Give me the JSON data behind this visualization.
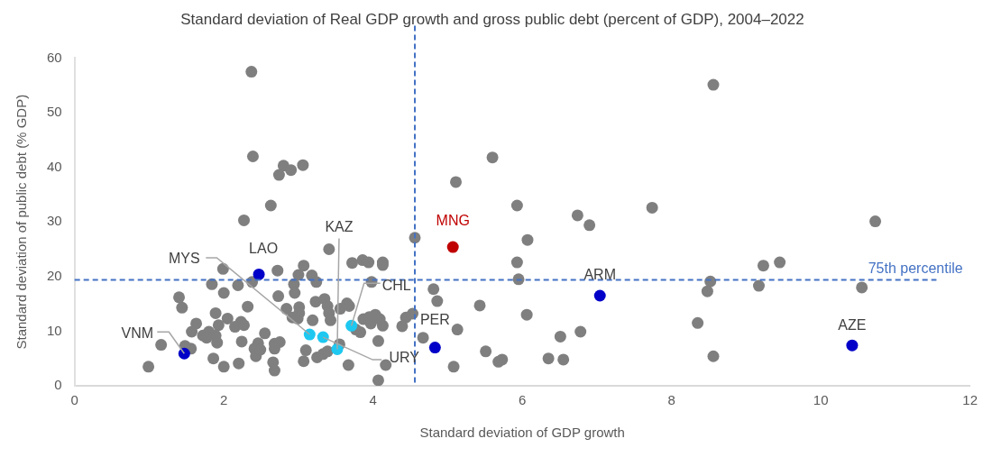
{
  "chart_data": {
    "type": "scatter",
    "title": "Standard deviation of Real GDP growth and gross public debt (percent of GDP), 2004–2022",
    "xlabel": "Standard deviation of GDP growth",
    "ylabel": "Standard deviation of public debt (% GDP)",
    "xlim": [
      0,
      12
    ],
    "xticks": [
      0,
      2,
      4,
      6,
      8,
      10,
      12
    ],
    "ylim": [
      0,
      60
    ],
    "yticks": [
      0,
      10,
      20,
      30,
      40,
      50,
      60
    ],
    "grid": false,
    "legend": false,
    "marker": "circle",
    "ref_lines": [
      {
        "axis": "x",
        "value": 4.56,
        "label": null,
        "color": "#4472c4",
        "line_style": "dashed"
      },
      {
        "axis": "y",
        "value": 19.4,
        "label": "75th percentile",
        "color": "#4472c4",
        "line_style": "dashed"
      }
    ],
    "series": [
      {
        "color": "#7f7f7f",
        "x": [
          8.56,
          5.6,
          5.11,
          5.93,
          7.74,
          6.74,
          6.9,
          10.73,
          4.56,
          6.07,
          5.93,
          9.23,
          9.45,
          5.95,
          8.52,
          8.48,
          9.17,
          10.55,
          4.81,
          4.86,
          5.43,
          6.06,
          8.35,
          4.53,
          4.44,
          4.39,
          5.13,
          4.67,
          6.51,
          6.78,
          5.51,
          5.68,
          5.73,
          6.35,
          6.55,
          5.08,
          8.56,
          2.37,
          2.39,
          2.8,
          2.9,
          3.06,
          2.74,
          2.63,
          2.27,
          3.41,
          3.07,
          2.72,
          1.99,
          3.72,
          3.86,
          3.94,
          4.13,
          4.13,
          3.0,
          3.18,
          3.24,
          2.94,
          2.95,
          3.98,
          1.84,
          2.19,
          2.0,
          2.38,
          1.4,
          1.44,
          2.32,
          2.73,
          3.23,
          3.35,
          3.39,
          2.84,
          3.01,
          3.01,
          2.92,
          2.99,
          3.41,
          3.43,
          3.19,
          3.56,
          3.65,
          3.68,
          3.55,
          1.89,
          2.05,
          2.23,
          2.15,
          2.27,
          1.63,
          1.57,
          1.93,
          1.72,
          1.8,
          1.89,
          1.91,
          1.77,
          1.16,
          1.56,
          1.48,
          2.55,
          2.24,
          2.46,
          2.41,
          2.43,
          2.49,
          2.68,
          2.75,
          2.68,
          2.66,
          2.68,
          2.2,
          1.86,
          2.0,
          0.99,
          3.07,
          3.1,
          3.25,
          3.33,
          3.39,
          3.67,
          4.17,
          4.07,
          4.07,
          3.87,
          3.95,
          4.03,
          3.97,
          4.13,
          4.09,
          3.83,
          3.77
        ],
        "values": [
          55.1,
          41.8,
          37.3,
          33.0,
          32.6,
          31.2,
          29.4,
          30.1,
          27.1,
          26.7,
          22.6,
          22.0,
          22.6,
          19.5,
          19.1,
          17.3,
          18.3,
          18.0,
          17.7,
          15.5,
          14.7,
          13.0,
          11.5,
          13.2,
          12.5,
          10.9,
          10.3,
          8.8,
          9.0,
          9.9,
          6.3,
          4.4,
          4.8,
          5.0,
          4.8,
          3.5,
          5.4,
          57.5,
          42.0,
          40.3,
          39.5,
          40.4,
          38.6,
          33.0,
          30.3,
          25.0,
          22.0,
          21.1,
          21.4,
          22.5,
          23.0,
          22.6,
          22.6,
          22.1,
          20.3,
          20.2,
          19.0,
          18.6,
          17.0,
          19.0,
          18.6,
          18.4,
          17.0,
          19.0,
          16.2,
          14.3,
          14.5,
          16.4,
          15.4,
          15.9,
          14.6,
          14.1,
          14.4,
          13.3,
          12.5,
          12.3,
          13.3,
          12.0,
          12.0,
          14.1,
          15.1,
          14.6,
          7.6,
          13.3,
          12.3,
          11.7,
          10.8,
          11.1,
          11.4,
          9.9,
          11.1,
          9.2,
          9.9,
          9.2,
          7.9,
          8.8,
          7.5,
          6.8,
          7.3,
          9.6,
          8.1,
          7.8,
          6.8,
          5.4,
          6.6,
          7.7,
          8.0,
          6.8,
          4.3,
          2.8,
          4.1,
          5.0,
          3.5,
          3.5,
          4.5,
          6.5,
          5.2,
          5.8,
          6.3,
          3.8,
          3.8,
          1.0,
          8.2,
          12.2,
          12.6,
          13.0,
          11.4,
          11.0,
          12.2,
          9.8,
          10.3
        ]
      },
      {
        "name": "LAO",
        "color": "#0000c8",
        "x": [
          2.47
        ],
        "values": [
          20.4
        ]
      },
      {
        "name": "VNM",
        "color": "#0000c8",
        "x": [
          1.47
        ],
        "values": [
          5.9
        ]
      },
      {
        "name": "MYS",
        "color": "#1ec8f0",
        "x": [
          3.15
        ],
        "values": [
          9.4
        ]
      },
      {
        "name": "URY",
        "color": "#1ec8f0",
        "x": [
          3.33
        ],
        "values": [
          8.9
        ]
      },
      {
        "name": "KAZ",
        "color": "#1ec8f0",
        "x": [
          3.52
        ],
        "values": [
          6.7
        ]
      },
      {
        "name": "CHL",
        "color": "#1ec8f0",
        "x": [
          3.71
        ],
        "values": [
          11.0
        ]
      },
      {
        "name": "PER",
        "color": "#0000c8",
        "x": [
          4.83
        ],
        "values": [
          7.0
        ]
      },
      {
        "name": "MNG",
        "color": "#c00000",
        "x": [
          5.07
        ],
        "values": [
          25.4
        ]
      },
      {
        "name": "ARM",
        "color": "#0000c8",
        "x": [
          7.04
        ],
        "values": [
          16.5
        ]
      },
      {
        "name": "AZE",
        "color": "#0000c8",
        "x": [
          10.42
        ],
        "values": [
          7.4
        ]
      }
    ]
  }
}
